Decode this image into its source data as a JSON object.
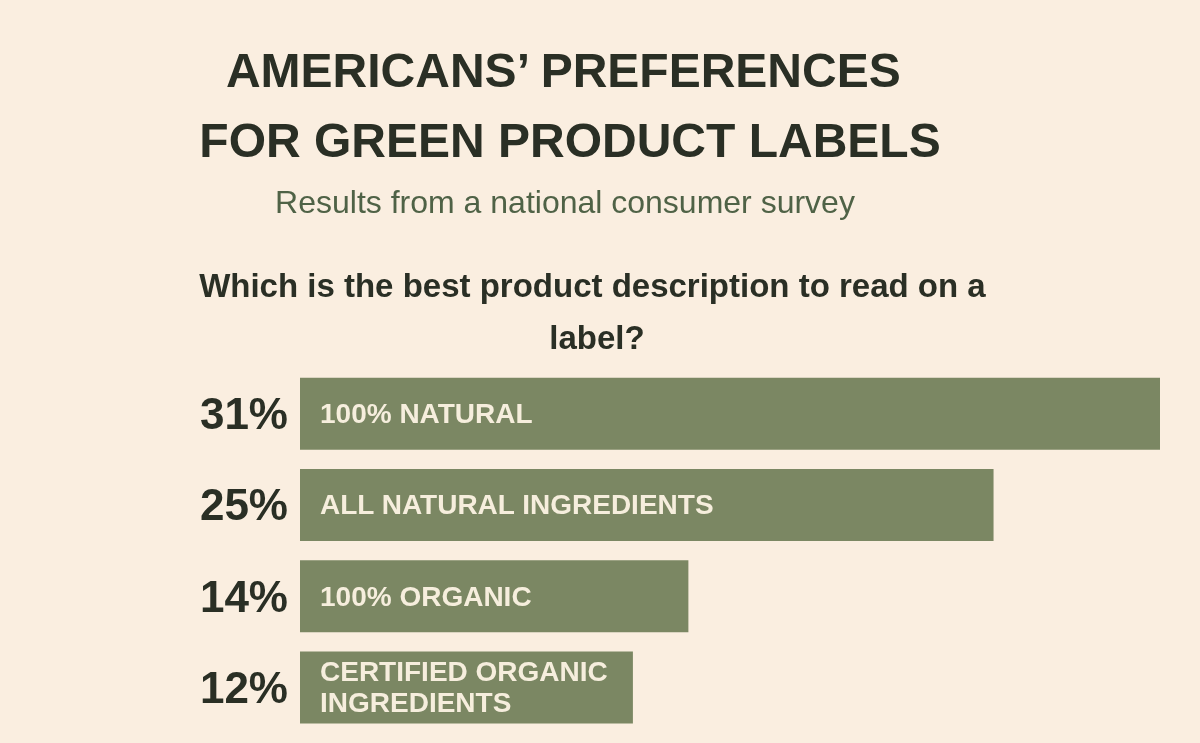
{
  "chart_data": {
    "type": "bar",
    "title": "AMERICANS’ PREFERENCES FOR GREEN PRODUCT LABELS",
    "subtitle": "Results from a national consumer survey",
    "annotations": [
      "Which is the best product description to read on a label?"
    ],
    "categories": [
      "100% NATURAL",
      "ALL NATURAL INGREDIENTS",
      "100% ORGANIC",
      "CERTIFIED ORGANIC INGREDIENTS"
    ],
    "values": [
      31,
      25,
      14,
      12
    ],
    "value_labels": [
      "31%",
      "25%",
      "14%",
      "12%"
    ],
    "color": "#7b8763",
    "orientation": "horizontal",
    "grid": false,
    "tick_labels": "y"
  }
}
